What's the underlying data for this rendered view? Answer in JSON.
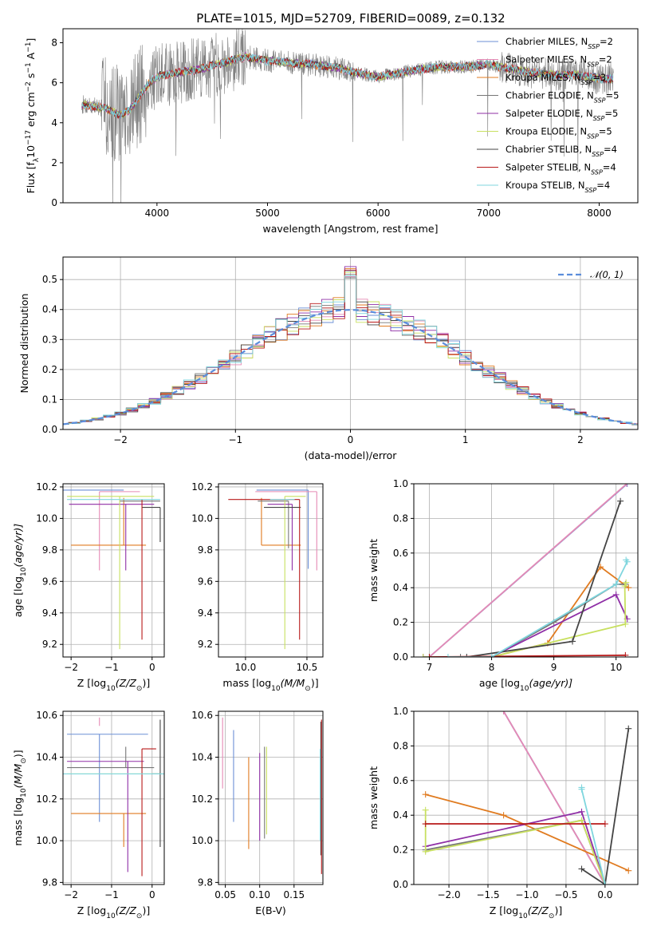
{
  "title": "PLATE=1015, MJD=52709, FIBERID=0089, z=0.132",
  "colors": {
    "chabrier_miles": "#6b8fd6",
    "salpeter_miles": "#e58ab5",
    "kroupa_miles": "#e07b20",
    "chabrier_elodie": "#777777",
    "salpeter_elodie": "#8f2fa6",
    "kroupa_elodie": "#c8e060",
    "chabrier_stelib": "#444444",
    "salpeter_stelib": "#b81a1a",
    "kroupa_stelib": "#7fd6de",
    "normal_curve": "#5b8ddb",
    "data": "#808080"
  },
  "chart_data": [
    {
      "id": "spectrum",
      "type": "line",
      "title": "PLATE=1015, MJD=52709, FIBERID=0089, z=0.132",
      "xlabel": "wavelength [Angstrom, rest frame]",
      "ylabel_parts": [
        "Flux [f",
        "λ",
        "10",
        "−17",
        " erg cm",
        "−2",
        " s",
        "−1",
        " A",
        "−1",
        "]"
      ],
      "xlim": [
        3150,
        8350
      ],
      "ylim": [
        0,
        8.7
      ],
      "xticks": [
        4000,
        5000,
        6000,
        7000,
        8000
      ],
      "yticks": [
        0,
        2,
        4,
        6,
        8
      ],
      "grid": false,
      "legend_position": "top-right",
      "model_anchors": {
        "x": [
          3350,
          3450,
          3550,
          3650,
          3750,
          3850,
          3950,
          4050,
          4200,
          4400,
          4600,
          4800,
          5000,
          5200,
          5400,
          5600,
          5800,
          6000,
          6200,
          6400,
          6600,
          6800,
          7000,
          7200,
          7400,
          7600,
          7800,
          8000,
          8100
        ],
        "y": [
          4.9,
          4.8,
          4.7,
          4.4,
          4.6,
          5.4,
          6.1,
          6.4,
          6.5,
          6.7,
          7.0,
          7.3,
          7.1,
          7.0,
          6.9,
          6.8,
          6.5,
          6.3,
          6.5,
          6.7,
          6.8,
          6.8,
          6.9,
          6.7,
          6.5,
          6.4,
          6.4,
          6.2,
          6.2
        ]
      },
      "legend": [
        {
          "name": "Chabrier MILES, N",
          "sub": "SSP",
          "suffix": "=2",
          "color": "#6b8fd6"
        },
        {
          "name": "Salpeter MILES, N",
          "sub": "SSP",
          "suffix": "=2",
          "color": "#e58ab5"
        },
        {
          "name": "Kroupa MILES, N",
          "sub": "SSP",
          "suffix": "=3",
          "color": "#e07b20"
        },
        {
          "name": "Chabrier ELODIE, N",
          "sub": "SSP",
          "suffix": "=5",
          "color": "#777777"
        },
        {
          "name": "Salpeter ELODIE, N",
          "sub": "SSP",
          "suffix": "=5",
          "color": "#8f2fa6"
        },
        {
          "name": "Kroupa ELODIE, N",
          "sub": "SSP",
          "suffix": "=5",
          "color": "#c8e060"
        },
        {
          "name": "Chabrier STELIB, N",
          "sub": "SSP",
          "suffix": "=4",
          "color": "#444444"
        },
        {
          "name": "Salpeter STELIB, N",
          "sub": "SSP",
          "suffix": "=4",
          "color": "#b81a1a"
        },
        {
          "name": "Kroupa STELIB, N",
          "sub": "SSP",
          "suffix": "=4",
          "color": "#7fd6de"
        }
      ]
    },
    {
      "id": "residuals",
      "type": "line",
      "xlabel": "(data-model)/error",
      "ylabel": "Normed distribution",
      "xlim": [
        -2.5,
        2.5
      ],
      "ylim": [
        0,
        0.575
      ],
      "xticks": [
        -2,
        -1,
        0,
        1,
        2
      ],
      "yticks": [
        0.0,
        0.1,
        0.2,
        0.3,
        0.4,
        0.5
      ],
      "grid": true,
      "legend_position": "top-right",
      "legend": [
        {
          "name": "𝒩(0, 1)",
          "color": "#5b8ddb",
          "style": "dashed"
        }
      ],
      "bin_width": 0.1
    },
    {
      "id": "age-vs-z",
      "type": "scatter",
      "xlabel_parts": [
        "Z [log",
        "10",
        "(Z/Z",
        "⊙",
        ")]"
      ],
      "ylabel_parts": [
        "age  [log",
        "10",
        "(age/yr)]"
      ],
      "xlim": [
        -2.2,
        0.3
      ],
      "ylim": [
        9.12,
        10.22
      ],
      "xticks": [
        -2,
        -1,
        0
      ],
      "yticks": [
        9.2,
        9.4,
        9.6,
        9.8,
        10.0,
        10.2
      ],
      "grid": true,
      "points": [
        {
          "x": -0.85,
          "y": 10.18,
          "xerr": [
            1.35,
            0.15
          ],
          "yerr": [
            0.0,
            0.0
          ],
          "color": "#6b8fd6"
        },
        {
          "x": -1.3,
          "y": 10.17,
          "xerr": [
            0.0,
            1.0
          ],
          "yerr": [
            0.5,
            0.0
          ],
          "color": "#e58ab5"
        },
        {
          "x": -0.7,
          "y": 9.83,
          "xerr": [
            1.3,
            0.55
          ],
          "yerr": [
            0.0,
            0.3
          ],
          "color": "#e07b20"
        },
        {
          "x": -0.3,
          "y": 10.11,
          "xerr": [
            0.5,
            0.5
          ],
          "yerr": [
            0.0,
            0.0
          ],
          "color": "#777777"
        },
        {
          "x": -0.65,
          "y": 10.09,
          "xerr": [
            1.4,
            0.7
          ],
          "yerr": [
            0.42,
            0.0
          ],
          "color": "#8f2fa6"
        },
        {
          "x": -0.8,
          "y": 10.14,
          "xerr": [
            1.3,
            0.85
          ],
          "yerr": [
            0.97,
            0.0
          ],
          "color": "#c8e060"
        },
        {
          "x": 0.2,
          "y": 10.07,
          "xerr": [
            0.45,
            0.0
          ],
          "yerr": [
            0.22,
            0.0
          ],
          "color": "#444444"
        },
        {
          "x": -0.25,
          "y": 10.12,
          "xerr": [
            0.0,
            0.0
          ],
          "yerr": [
            0.89,
            0.0
          ],
          "color": "#b81a1a"
        },
        {
          "x": -0.4,
          "y": 10.12,
          "xerr": [
            1.7,
            0.6
          ],
          "yerr": [
            0.0,
            0.0
          ],
          "color": "#7fd6de"
        }
      ]
    },
    {
      "id": "age-vs-mass",
      "type": "scatter",
      "xlabel_parts": [
        "mass [log",
        "10",
        "(M/M",
        "⊙",
        ")]"
      ],
      "xlim": [
        9.78,
        10.63
      ],
      "ylim": [
        9.12,
        10.22
      ],
      "xticks": [
        10.0,
        10.5
      ],
      "yticks": [
        9.2,
        9.4,
        9.6,
        9.8,
        10.0,
        10.2
      ],
      "grid": true,
      "points": [
        {
          "x": 10.51,
          "y": 10.18,
          "xerr": [
            0.42,
            0.0
          ],
          "yerr": [
            0.5,
            0.0
          ],
          "color": "#6b8fd6"
        },
        {
          "x": 10.58,
          "y": 10.17,
          "xerr": [
            0.5,
            0.0
          ],
          "yerr": [
            0.5,
            0.0
          ],
          "color": "#e58ab5"
        },
        {
          "x": 10.13,
          "y": 9.83,
          "xerr": [
            0.0,
            0.32
          ],
          "yerr": [
            0.0,
            0.3
          ],
          "color": "#e07b20"
        },
        {
          "x": 10.35,
          "y": 10.11,
          "xerr": [
            0.25,
            0.0
          ],
          "yerr": [
            0.3,
            0.0
          ],
          "color": "#777777"
        },
        {
          "x": 10.38,
          "y": 10.09,
          "xerr": [
            0.2,
            0.0
          ],
          "yerr": [
            0.42,
            0.0
          ],
          "color": "#8f2fa6"
        },
        {
          "x": 10.32,
          "y": 10.14,
          "xerr": [
            0.0,
            0.17
          ],
          "yerr": [
            0.97,
            0.0
          ],
          "color": "#c8e060"
        },
        {
          "x": 10.45,
          "y": 10.07,
          "xerr": [
            0.3,
            0.0
          ],
          "yerr": [
            0.0,
            0.0
          ],
          "color": "#444444"
        },
        {
          "x": 10.44,
          "y": 10.12,
          "xerr": [
            0.58,
            0.0
          ],
          "yerr": [
            0.89,
            0.0
          ],
          "color": "#b81a1a"
        },
        {
          "x": 10.4,
          "y": 10.12,
          "xerr": [
            0.2,
            0.0
          ],
          "yerr": [
            0.0,
            0.0
          ],
          "color": "#7fd6de"
        }
      ]
    },
    {
      "id": "weight-vs-age",
      "type": "line",
      "xlabel_parts": [
        "age  [log",
        "10",
        "(age/yr)]"
      ],
      "ylabel": "mass weight",
      "xlim": [
        6.75,
        10.35
      ],
      "ylim": [
        0,
        1.0
      ],
      "xticks": [
        7,
        8,
        9,
        10
      ],
      "yticks": [
        0.0,
        0.2,
        0.4,
        0.6,
        0.8,
        1.0
      ],
      "grid": true,
      "series": [
        {
          "color": "#6b8fd6",
          "x": [
            7.0,
            10.18
          ],
          "y": [
            0.0,
            1.0
          ]
        },
        {
          "color": "#e58ab5",
          "x": [
            7.0,
            10.17
          ],
          "y": [
            0.0,
            1.0
          ]
        },
        {
          "color": "#e07b20",
          "x": [
            8.0,
            8.9,
            9.75,
            10.2
          ],
          "y": [
            0.0,
            0.08,
            0.52,
            0.4
          ]
        },
        {
          "color": "#777777",
          "x": [
            7.5,
            8.0,
            9.0,
            10.0,
            10.15
          ],
          "y": [
            0.0,
            0.0,
            0.2,
            0.42,
            0.42
          ]
        },
        {
          "color": "#8f2fa6",
          "x": [
            6.9,
            8.0,
            10.0,
            10.18
          ],
          "y": [
            0.0,
            0.0,
            0.36,
            0.22
          ]
        },
        {
          "color": "#c8e060",
          "x": [
            6.9,
            8.0,
            10.15,
            10.14,
            10.16
          ],
          "y": [
            0.0,
            0.0,
            0.19,
            0.41,
            0.43
          ]
        },
        {
          "color": "#444444",
          "x": [
            7.6,
            9.3,
            10.07
          ],
          "y": [
            0.0,
            0.09,
            0.9
          ]
        },
        {
          "color": "#b81a1a",
          "x": [
            7.0,
            10.15
          ],
          "y": [
            0.0,
            0.01
          ]
        },
        {
          "color": "#7fd6de",
          "x": [
            7.3,
            8.0,
            10.0,
            10.18,
            10.16
          ],
          "y": [
            0.0,
            0.0,
            0.42,
            0.55,
            0.56
          ]
        }
      ]
    },
    {
      "id": "mass-vs-z",
      "type": "scatter",
      "xlabel_parts": [
        "Z [log",
        "10",
        "(Z/Z",
        "⊙",
        ")]"
      ],
      "ylabel_parts": [
        "mass [log",
        "10",
        "(M/M",
        "⊙",
        ")]"
      ],
      "xlim": [
        -2.2,
        0.3
      ],
      "ylim": [
        9.79,
        10.62
      ],
      "xticks": [
        -2,
        -1,
        0
      ],
      "yticks": [
        9.8,
        10.0,
        10.2,
        10.4,
        10.6
      ],
      "grid": true,
      "points": [
        {
          "x": -1.3,
          "y": 10.51,
          "xerr": [
            0.8,
            1.2
          ],
          "yerr": [
            0.42,
            0.0
          ],
          "color": "#6b8fd6"
        },
        {
          "x": -1.3,
          "y": 10.55,
          "xerr": [
            0.0,
            0.0
          ],
          "yerr": [
            0.0,
            0.04
          ],
          "color": "#e58ab5"
        },
        {
          "x": -0.7,
          "y": 10.13,
          "xerr": [
            1.3,
            0.55
          ],
          "yerr": [
            0.16,
            0.0
          ],
          "color": "#e07b20"
        },
        {
          "x": -0.65,
          "y": 10.35,
          "xerr": [
            1.45,
            0.7
          ],
          "yerr": [
            0.0,
            0.1
          ],
          "color": "#777777"
        },
        {
          "x": -0.6,
          "y": 10.38,
          "xerr": [
            1.5,
            0.4
          ],
          "yerr": [
            0.53,
            0.0
          ],
          "color": "#8f2fa6"
        },
        {
          "x": -0.8,
          "y": 10.32,
          "xerr": [
            1.3,
            1.05
          ],
          "yerr": [
            0.0,
            0.0
          ],
          "color": "#c8e060"
        },
        {
          "x": 0.2,
          "y": 10.32,
          "xerr": [
            0.2,
            0.0
          ],
          "yerr": [
            0.35,
            0.26
          ],
          "color": "#444444"
        },
        {
          "x": -0.25,
          "y": 10.44,
          "xerr": [
            0.0,
            0.35
          ],
          "yerr": [
            0.61,
            0.0
          ],
          "color": "#b81a1a"
        },
        {
          "x": -0.6,
          "y": 10.32,
          "xerr": [
            1.6,
            0.9
          ],
          "yerr": [
            0.0,
            0.0
          ],
          "color": "#7fd6de"
        }
      ]
    },
    {
      "id": "mass-vs-ebv",
      "type": "scatter",
      "xlabel": "E(B-V)",
      "xlim": [
        0.04,
        0.192
      ],
      "ylim": [
        9.79,
        10.62
      ],
      "xticks": [
        0.05,
        0.1,
        0.15
      ],
      "yticks": [
        9.8,
        10.0,
        10.2,
        10.4,
        10.6
      ],
      "grid": true,
      "points": [
        {
          "x": 0.062,
          "y": 10.31,
          "xerr": [
            0.0,
            0.0
          ],
          "yerr": [
            0.22,
            0.22
          ],
          "color": "#6b8fd6"
        },
        {
          "x": 0.046,
          "y": 10.42,
          "xerr": [
            0.0,
            0.0
          ],
          "yerr": [
            0.17,
            0.17
          ],
          "color": "#e58ab5"
        },
        {
          "x": 0.084,
          "y": 10.18,
          "xerr": [
            0.0,
            0.0
          ],
          "yerr": [
            0.22,
            0.22
          ],
          "color": "#e07b20"
        },
        {
          "x": 0.107,
          "y": 10.23,
          "xerr": [
            0.0,
            0.0
          ],
          "yerr": [
            0.22,
            0.22
          ],
          "color": "#777777"
        },
        {
          "x": 0.1,
          "y": 10.21,
          "xerr": [
            0.0,
            0.0
          ],
          "yerr": [
            0.21,
            0.21
          ],
          "color": "#8f2fa6"
        },
        {
          "x": 0.11,
          "y": 10.24,
          "xerr": [
            0.0,
            0.0
          ],
          "yerr": [
            0.21,
            0.21
          ],
          "color": "#c8e060"
        },
        {
          "x": 0.189,
          "y": 10.25,
          "xerr": [
            0.0,
            0.0
          ],
          "yerr": [
            0.32,
            0.32
          ],
          "color": "#444444"
        },
        {
          "x": 0.19,
          "y": 10.21,
          "xerr": [
            0.0,
            0.0
          ],
          "yerr": [
            0.37,
            0.37
          ],
          "color": "#b81a1a"
        },
        {
          "x": 0.188,
          "y": 10.22,
          "xerr": [
            0.0,
            0.0
          ],
          "yerr": [
            0.22,
            0.22
          ],
          "color": "#7fd6de"
        }
      ]
    },
    {
      "id": "weight-vs-z",
      "type": "line",
      "xlabel_parts": [
        "Z [log",
        "10",
        "(Z/Z",
        "⊙",
        ")]"
      ],
      "ylabel": "mass weight",
      "xlim": [
        -2.45,
        0.42
      ],
      "ylim": [
        0,
        1.0
      ],
      "xticks": [
        -2.0,
        -1.5,
        -1.0,
        -0.5,
        0.0
      ],
      "yticks": [
        0.0,
        0.2,
        0.4,
        0.6,
        0.8,
        1.0
      ],
      "grid": true,
      "series": [
        {
          "color": "#6b8fd6",
          "x": [
            -1.3,
            0.0
          ],
          "y": [
            1.0,
            0.0
          ]
        },
        {
          "color": "#e58ab5",
          "x": [
            -1.3,
            0.0
          ],
          "y": [
            1.0,
            0.0
          ]
        },
        {
          "color": "#e07b20",
          "x": [
            -2.3,
            -1.3,
            0.3
          ],
          "y": [
            0.52,
            0.4,
            0.08
          ]
        },
        {
          "color": "#777777",
          "x": [
            -2.3,
            -0.3,
            0.0
          ],
          "y": [
            0.2,
            0.37,
            0.0
          ]
        },
        {
          "color": "#8f2fa6",
          "x": [
            -2.3,
            -0.3,
            0.0
          ],
          "y": [
            0.22,
            0.42,
            0.0
          ]
        },
        {
          "color": "#c8e060",
          "x": [
            -2.3,
            -2.3,
            -0.3,
            0.0
          ],
          "y": [
            0.43,
            0.19,
            0.37,
            0.0
          ]
        },
        {
          "color": "#444444",
          "x": [
            -0.3,
            0.0,
            0.3
          ],
          "y": [
            0.09,
            0.0,
            0.9
          ]
        },
        {
          "color": "#b81a1a",
          "x": [
            -2.3,
            0.0
          ],
          "y": [
            0.35,
            0.35
          ]
        },
        {
          "color": "#7fd6de",
          "x": [
            -0.3,
            -0.3,
            0.0
          ],
          "y": [
            0.56,
            0.55,
            0.0
          ]
        }
      ]
    }
  ]
}
